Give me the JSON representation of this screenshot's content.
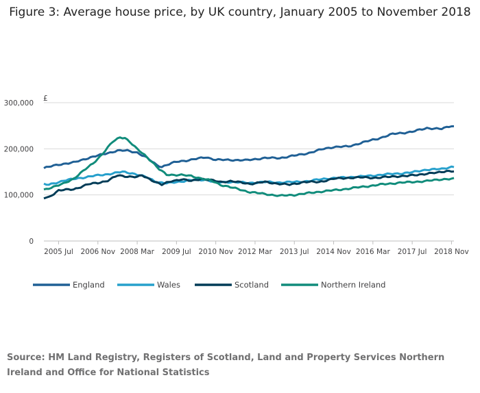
{
  "chart_data": {
    "type": "line",
    "title": "Figure 3: Average house price, by UK country, January 2005 to November 2018",
    "ylabel": "£",
    "xlabel": "",
    "ylim": [
      0,
      300000
    ],
    "y_ticks": [
      {
        "value": 0,
        "label": "0"
      },
      {
        "value": 100000,
        "label": "100,000"
      },
      {
        "value": 200000,
        "label": "200,000"
      },
      {
        "value": 300000,
        "label": "300,000"
      }
    ],
    "x_start": "Jan 2005",
    "x_end": "Nov 2018",
    "x_ticks": [
      {
        "index": 6,
        "label": "2005 Jul"
      },
      {
        "index": 22,
        "label": "2006 Nov"
      },
      {
        "index": 38,
        "label": "2008 Mar"
      },
      {
        "index": 54,
        "label": "2009 Jul"
      },
      {
        "index": 70,
        "label": "2010 Nov"
      },
      {
        "index": 86,
        "label": "2012 Mar"
      },
      {
        "index": 102,
        "label": "2013 Jul"
      },
      {
        "index": 118,
        "label": "2014 Nov"
      },
      {
        "index": 134,
        "label": "2016 Mar"
      },
      {
        "index": 150,
        "label": "2017 Jul"
      },
      {
        "index": 166,
        "label": "2018 Nov"
      }
    ],
    "series": [
      {
        "name": "England",
        "color": "#206095",
        "keypoints": [
          [
            0,
            158000
          ],
          [
            6,
            166000
          ],
          [
            12,
            170000
          ],
          [
            18,
            180000
          ],
          [
            24,
            188000
          ],
          [
            30,
            196000
          ],
          [
            34,
            196000
          ],
          [
            38,
            192000
          ],
          [
            42,
            180000
          ],
          [
            46,
            165000
          ],
          [
            48,
            161000
          ],
          [
            54,
            172000
          ],
          [
            60,
            176000
          ],
          [
            66,
            182000
          ],
          [
            70,
            176000
          ],
          [
            76,
            176000
          ],
          [
            82,
            175000
          ],
          [
            90,
            180000
          ],
          [
            96,
            180000
          ],
          [
            102,
            185000
          ],
          [
            108,
            191000
          ],
          [
            114,
            200000
          ],
          [
            118,
            204000
          ],
          [
            124,
            205000
          ],
          [
            130,
            214000
          ],
          [
            136,
            222000
          ],
          [
            142,
            232000
          ],
          [
            150,
            237000
          ],
          [
            156,
            245000
          ],
          [
            162,
            243000
          ],
          [
            166,
            250000
          ],
          [
            168,
            247000
          ]
        ]
      },
      {
        "name": "Wales",
        "color": "#27a0cc",
        "keypoints": [
          [
            0,
            123000
          ],
          [
            2,
            122000
          ],
          [
            8,
            131000
          ],
          [
            14,
            136000
          ],
          [
            20,
            141000
          ],
          [
            26,
            145000
          ],
          [
            32,
            150000
          ],
          [
            36,
            147000
          ],
          [
            42,
            138000
          ],
          [
            46,
            128000
          ],
          [
            50,
            125000
          ],
          [
            54,
            128000
          ],
          [
            60,
            132000
          ],
          [
            66,
            133000
          ],
          [
            70,
            127000
          ],
          [
            76,
            128000
          ],
          [
            84,
            126000
          ],
          [
            90,
            128000
          ],
          [
            96,
            127000
          ],
          [
            102,
            128000
          ],
          [
            108,
            130000
          ],
          [
            114,
            135000
          ],
          [
            120,
            137000
          ],
          [
            126,
            139000
          ],
          [
            132,
            141000
          ],
          [
            138,
            144000
          ],
          [
            146,
            147000
          ],
          [
            150,
            149000
          ],
          [
            156,
            155000
          ],
          [
            162,
            156000
          ],
          [
            166,
            161000
          ],
          [
            168,
            161000
          ]
        ]
      },
      {
        "name": "Scotland",
        "color": "#003c57",
        "keypoints": [
          [
            0,
            93000
          ],
          [
            2,
            95000
          ],
          [
            6,
            110000
          ],
          [
            12,
            112000
          ],
          [
            18,
            123000
          ],
          [
            22,
            126000
          ],
          [
            26,
            131000
          ],
          [
            30,
            142000
          ],
          [
            34,
            140000
          ],
          [
            38,
            139000
          ],
          [
            40,
            142000
          ],
          [
            44,
            132000
          ],
          [
            48,
            122000
          ],
          [
            52,
            130000
          ],
          [
            56,
            134000
          ],
          [
            60,
            130000
          ],
          [
            64,
            135000
          ],
          [
            68,
            132000
          ],
          [
            72,
            128000
          ],
          [
            76,
            130000
          ],
          [
            80,
            127000
          ],
          [
            84,
            124000
          ],
          [
            90,
            128000
          ],
          [
            96,
            124000
          ],
          [
            100,
            122000
          ],
          [
            106,
            128000
          ],
          [
            112,
            128000
          ],
          [
            118,
            135000
          ],
          [
            124,
            137000
          ],
          [
            130,
            138000
          ],
          [
            136,
            137000
          ],
          [
            142,
            140000
          ],
          [
            148,
            141000
          ],
          [
            154,
            145000
          ],
          [
            160,
            148000
          ],
          [
            164,
            152000
          ],
          [
            168,
            151000
          ]
        ]
      },
      {
        "name": "Northern Ireland",
        "color": "#118c7b",
        "keypoints": [
          [
            0,
            111000
          ],
          [
            4,
            118000
          ],
          [
            8,
            124000
          ],
          [
            12,
            135000
          ],
          [
            16,
            152000
          ],
          [
            20,
            168000
          ],
          [
            24,
            190000
          ],
          [
            28,
            215000
          ],
          [
            31,
            225000
          ],
          [
            33,
            224000
          ],
          [
            35,
            215000
          ],
          [
            38,
            199000
          ],
          [
            41,
            187000
          ],
          [
            44,
            172000
          ],
          [
            47,
            155000
          ],
          [
            50,
            144000
          ],
          [
            56,
            143000
          ],
          [
            60,
            141000
          ],
          [
            64,
            136000
          ],
          [
            68,
            131000
          ],
          [
            72,
            122000
          ],
          [
            78,
            114000
          ],
          [
            84,
            106000
          ],
          [
            90,
            102000
          ],
          [
            96,
            98000
          ],
          [
            102,
            100000
          ],
          [
            108,
            104000
          ],
          [
            114,
            108000
          ],
          [
            120,
            111000
          ],
          [
            126,
            115000
          ],
          [
            132,
            119000
          ],
          [
            138,
            123000
          ],
          [
            144,
            126000
          ],
          [
            150,
            128000
          ],
          [
            156,
            130000
          ],
          [
            162,
            134000
          ],
          [
            168,
            135000
          ]
        ]
      }
    ]
  },
  "source": "Source: HM Land Registry, Registers of Scotland, Land and Property Services Northern Ireland and Office for National Statistics"
}
